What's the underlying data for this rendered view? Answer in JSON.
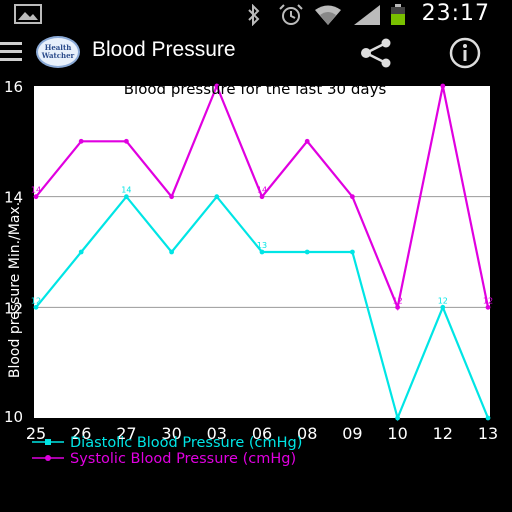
{
  "status_bar": {
    "time": "23:17",
    "icons": [
      "gallery-icon",
      "bluetooth-icon",
      "alarm-icon",
      "wifi-icon",
      "signal-icon",
      "battery-icon"
    ]
  },
  "action_bar": {
    "title": "Blood Pressure",
    "logo_text": "Health Watcher",
    "share_icon": "share-icon",
    "info_icon": "info-icon"
  },
  "colors": {
    "diastolic": "#00e5e5",
    "systolic": "#e000e0",
    "grid": "#9a9a9a"
  },
  "chart_data": {
    "type": "line",
    "title": "Blood pressure for the last 30 days",
    "ylabel": "Blood pressure Min./Max.",
    "xlabel": "",
    "ylim": [
      10,
      16
    ],
    "yticks": [
      10,
      12,
      14,
      16
    ],
    "grid": true,
    "legend_position": "bottom-left",
    "categories": [
      "25",
      "26",
      "27",
      "30",
      "03",
      "06",
      "08",
      "09",
      "10",
      "12",
      "13"
    ],
    "series": [
      {
        "name": "Diastolic Blood Pressure (cmHg)",
        "values": [
          12,
          13,
          14,
          13,
          14,
          13,
          13,
          13,
          10,
          12,
          10
        ],
        "labels": [
          "12",
          "",
          "14",
          "",
          "",
          "13",
          "",
          "",
          "",
          "12",
          ""
        ]
      },
      {
        "name": "Systolic Blood Pressure (cmHg)",
        "values": [
          14,
          15,
          15,
          14,
          16,
          14,
          15,
          14,
          12,
          16,
          12
        ],
        "labels": [
          "14",
          "",
          "",
          "",
          "",
          "14",
          "",
          "",
          "12",
          "",
          "12"
        ]
      }
    ]
  }
}
